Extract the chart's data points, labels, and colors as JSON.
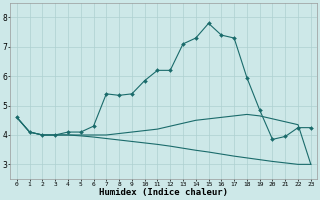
{
  "xlabel": "Humidex (Indice chaleur)",
  "ylabel": "",
  "bg_color": "#cde8e8",
  "grid_color": "#aed0d0",
  "line_color": "#1a6b6b",
  "xlim": [
    -0.5,
    23.5
  ],
  "ylim": [
    2.5,
    8.5
  ],
  "xticks": [
    0,
    1,
    2,
    3,
    4,
    5,
    6,
    7,
    8,
    9,
    10,
    11,
    12,
    13,
    14,
    15,
    16,
    17,
    18,
    19,
    20,
    21,
    22,
    23
  ],
  "yticks": [
    3,
    4,
    5,
    6,
    7,
    8
  ],
  "series1_x": [
    0,
    1,
    2,
    3,
    4,
    5,
    6,
    7,
    8,
    9,
    10,
    11,
    12,
    13,
    14,
    15,
    16,
    17,
    18,
    19,
    20,
    21,
    22,
    23
  ],
  "series1_y": [
    4.6,
    4.1,
    4.0,
    4.0,
    4.1,
    4.1,
    4.3,
    5.4,
    5.35,
    5.4,
    5.85,
    6.2,
    6.2,
    7.1,
    7.3,
    7.8,
    7.4,
    7.3,
    5.95,
    4.85,
    3.85,
    3.95,
    4.25,
    4.25
  ],
  "series2_x": [
    0,
    1,
    2,
    3,
    4,
    5,
    6,
    7,
    8,
    9,
    10,
    11,
    12,
    13,
    14,
    15,
    16,
    17,
    18,
    19,
    20,
    21,
    22,
    23
  ],
  "series2_y": [
    4.6,
    4.1,
    4.0,
    4.0,
    4.0,
    4.0,
    4.0,
    4.0,
    4.05,
    4.1,
    4.15,
    4.2,
    4.3,
    4.4,
    4.5,
    4.55,
    4.6,
    4.65,
    4.7,
    4.65,
    4.55,
    4.45,
    4.35,
    3.0
  ],
  "series3_x": [
    0,
    1,
    2,
    3,
    4,
    5,
    6,
    7,
    8,
    9,
    10,
    11,
    12,
    13,
    14,
    15,
    16,
    17,
    18,
    19,
    20,
    21,
    22,
    23
  ],
  "series3_y": [
    4.6,
    4.1,
    4.0,
    4.0,
    4.0,
    3.97,
    3.93,
    3.88,
    3.83,
    3.78,
    3.73,
    3.68,
    3.62,
    3.55,
    3.48,
    3.42,
    3.35,
    3.28,
    3.22,
    3.16,
    3.1,
    3.05,
    3.0,
    3.0
  ]
}
